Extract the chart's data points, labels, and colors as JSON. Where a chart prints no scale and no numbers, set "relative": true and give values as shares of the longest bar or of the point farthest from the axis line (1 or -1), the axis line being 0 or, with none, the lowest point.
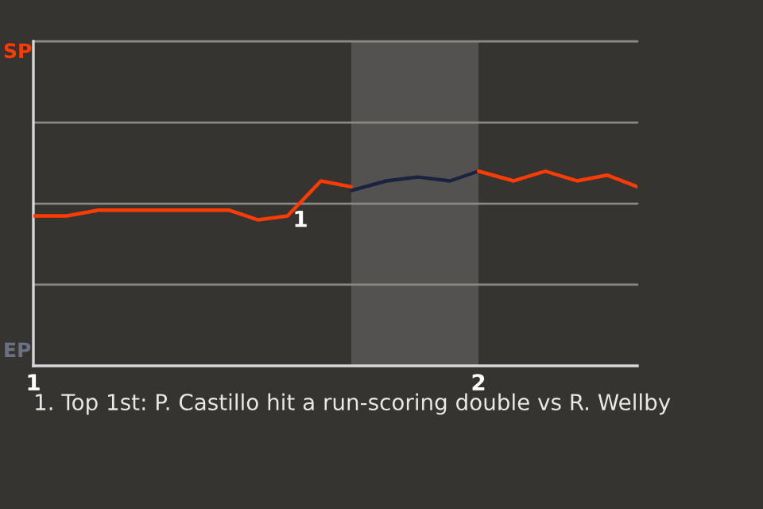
{
  "chart_data": {
    "type": "line",
    "relative": true,
    "series": [
      {
        "color": "#ff3c00",
        "x": [
          1.0,
          1.071,
          1.075,
          1.146,
          1.439,
          1.504,
          1.571,
          1.646,
          1.714
        ],
        "values": [
          0.77,
          0.77,
          0.77,
          0.8,
          0.8,
          0.75,
          0.77,
          0.95,
          0.92
        ]
      },
      {
        "color": "#1b2340",
        "x": [
          1.714,
          1.793,
          1.864,
          1.936,
          2.0
        ],
        "values": [
          0.9,
          0.95,
          0.97,
          0.95,
          1.0
        ]
      },
      {
        "color": "#ff3c00",
        "x": [
          2.0,
          2.079,
          2.15,
          2.221,
          2.289,
          2.357
        ],
        "values": [
          1.0,
          0.95,
          1.0,
          0.95,
          0.98,
          0.92
        ]
      }
    ],
    "xlim": [
      1,
      2.357
    ],
    "xticks": [
      1,
      2
    ],
    "ref_lines": [
      {
        "axis": "y",
        "value": 0.417,
        "color": "#8a8884"
      },
      {
        "axis": "y",
        "value": 0.833,
        "color": "#8a8884"
      },
      {
        "axis": "y",
        "value": 1.25,
        "color": "#8a8884"
      },
      {
        "axis": "y",
        "value": 1.667,
        "color": "#8a8884"
      }
    ],
    "marker": "none",
    "line_style": "solid",
    "legend": false,
    "bands": [
      {
        "axis": "x",
        "from": 1.714,
        "to": 2.0,
        "color": "#545250"
      }
    ],
    "annotations": [
      "SP",
      "EP",
      {
        "text": "1",
        "x": 1.6,
        "y": 0.8
      },
      "1. Top 1st: P. Castillo hit a run-scoring double vs R. Wellby"
    ]
  }
}
